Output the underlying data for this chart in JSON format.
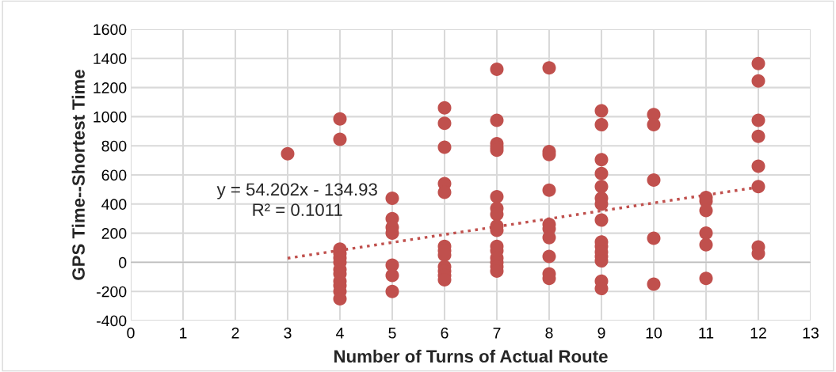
{
  "chart_data": {
    "type": "scatter",
    "xlabel": "Number of Turns of Actual Route",
    "ylabel": "GPS Time--Shortest Time",
    "xlim": [
      0,
      13
    ],
    "xticks": [
      0,
      1,
      2,
      3,
      4,
      5,
      6,
      7,
      8,
      9,
      10,
      11,
      12,
      13
    ],
    "ylim": [
      -400,
      1600
    ],
    "yticks": [
      -400,
      -200,
      0,
      200,
      400,
      600,
      800,
      1000,
      1200,
      1400,
      1600
    ],
    "grid": true,
    "legend": false,
    "annotations": [
      "y = 54.202x - 134.93",
      "R² = 0.1011"
    ],
    "series": [
      {
        "marker": "circle",
        "color": "#c0504d",
        "x": [
          3,
          4,
          4,
          4,
          4,
          4,
          4,
          4,
          4,
          4,
          4,
          4,
          4,
          5,
          5,
          5,
          5,
          5,
          5,
          5,
          6,
          6,
          6,
          6,
          6,
          6,
          6,
          6,
          6,
          6,
          6,
          6,
          7,
          7,
          7,
          7,
          7,
          7,
          7,
          7,
          7,
          7,
          7,
          7,
          7,
          7,
          7,
          7,
          8,
          8,
          8,
          8,
          8,
          8,
          8,
          8,
          8,
          8,
          9,
          9,
          9,
          9,
          9,
          9,
          9,
          9,
          9,
          9,
          9,
          9,
          9,
          9,
          9,
          10,
          10,
          10,
          10,
          10,
          11,
          11,
          11,
          11,
          11,
          11,
          12,
          12,
          12,
          12,
          12,
          12,
          12,
          12
        ],
        "values": [
          745,
          985,
          845,
          90,
          60,
          30,
          0,
          -50,
          -80,
          -130,
          -160,
          -200,
          -250,
          440,
          300,
          240,
          200,
          -20,
          -90,
          -200,
          1060,
          955,
          790,
          540,
          480,
          110,
          80,
          50,
          -30,
          -60,
          -90,
          -120,
          1325,
          975,
          815,
          790,
          770,
          450,
          370,
          330,
          250,
          220,
          110,
          80,
          30,
          0,
          -30,
          -60,
          1335,
          760,
          740,
          495,
          260,
          230,
          170,
          40,
          -80,
          -110,
          1040,
          945,
          705,
          610,
          520,
          440,
          400,
          290,
          140,
          110,
          70,
          40,
          10,
          -130,
          -180,
          1015,
          945,
          565,
          165,
          -150,
          445,
          420,
          355,
          200,
          120,
          -110,
          1365,
          1245,
          975,
          865,
          660,
          520,
          105,
          60
        ]
      },
      {
        "type": "line",
        "color": "#c0504d",
        "line_style": "dotted",
        "x": [
          3,
          12
        ],
        "values": [
          28,
          516
        ]
      }
    ]
  }
}
